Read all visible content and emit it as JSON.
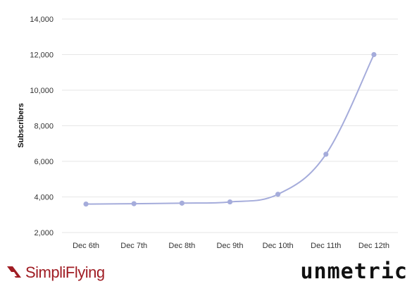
{
  "chart_data": {
    "type": "line",
    "title": "",
    "xlabel": "",
    "ylabel": "Subscribers",
    "categories": [
      "Dec 6th",
      "Dec 7th",
      "Dec 8th",
      "Dec 9th",
      "Dec 10th",
      "Dec 11th",
      "Dec 12th"
    ],
    "series": [
      {
        "values": [
          3600,
          3620,
          3650,
          3720,
          4150,
          6400,
          12000
        ],
        "color": "#a5acdb"
      }
    ],
    "ylim": [
      2000,
      14000
    ],
    "yticks": [
      "2,000",
      "4,000",
      "6,000",
      "8,000",
      "10,000",
      "12,000",
      "14,000"
    ],
    "yticks_values": [
      2000,
      4000,
      6000,
      8000,
      10000,
      12000,
      14000
    ],
    "grid": true,
    "smooth": true
  },
  "branding": {
    "left_logo": "SimpliFlying",
    "right_logo": "unmetric"
  },
  "colors": {
    "line": "#a5acdb",
    "grid": "#e6e6e6",
    "left_logo": "#a01d24",
    "right_logo": "#111111"
  }
}
